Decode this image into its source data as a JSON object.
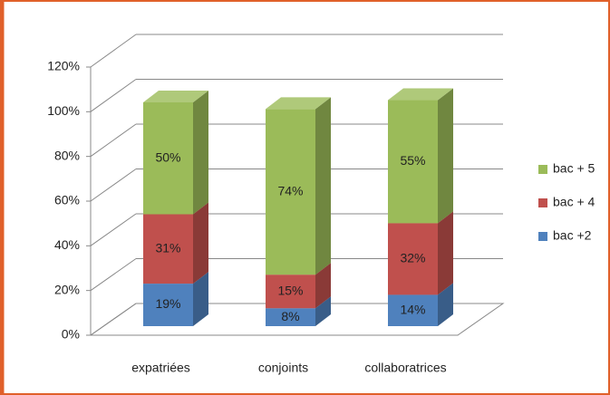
{
  "chart_data": {
    "type": "bar3d_stacked",
    "categories": [
      "expatriées",
      "conjoints",
      "collaboratrices"
    ],
    "series": [
      {
        "name": "bac +2",
        "color": "#4f81bd",
        "values": [
          19,
          8,
          14
        ],
        "value_labels": [
          "19%",
          "8%",
          "14%"
        ]
      },
      {
        "name": "bac + 4",
        "color": "#c0504d",
        "values": [
          31,
          15,
          32
        ],
        "value_labels": [
          "31%",
          "15%",
          "32%"
        ]
      },
      {
        "name": "bac + 5",
        "color": "#9bbb59",
        "values": [
          50,
          74,
          55
        ],
        "value_labels": [
          "50%",
          "74%",
          "55%"
        ]
      }
    ],
    "ylim": [
      0,
      120
    ],
    "yticks": [
      {
        "value": 0,
        "label": "0%"
      },
      {
        "value": 20,
        "label": "20%"
      },
      {
        "value": 40,
        "label": "40%"
      },
      {
        "value": 60,
        "label": "60%"
      },
      {
        "value": 80,
        "label": "80%"
      },
      {
        "value": 100,
        "label": "100%"
      },
      {
        "value": 120,
        "label": "120%"
      }
    ],
    "grid": true,
    "legend": "right"
  }
}
